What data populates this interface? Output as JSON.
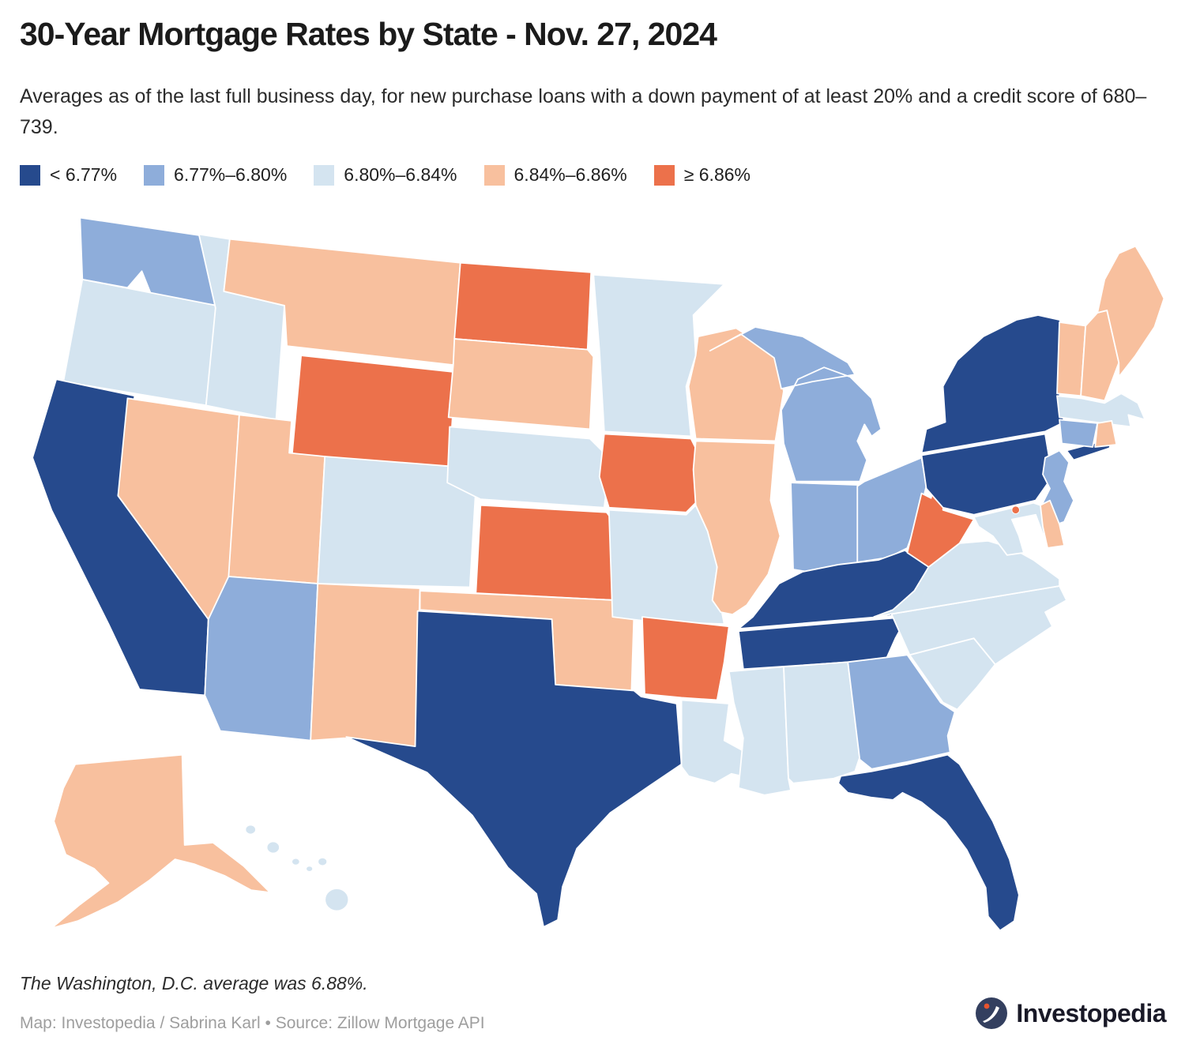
{
  "header": {
    "title": "30-Year Mortgage Rates by State - Nov. 27, 2024",
    "subtitle": "Averages as of the last full business day, for new purchase loans with a down payment of at least 20% and a credit score of 680–739."
  },
  "legend": {
    "items": [
      {
        "label": "< 6.77%",
        "color": "#264A8D"
      },
      {
        "label": "6.77%–6.80%",
        "color": "#8EADDA"
      },
      {
        "label": "6.80%–6.84%",
        "color": "#D4E4F0"
      },
      {
        "label": "6.84%–6.86%",
        "color": "#F8C09E"
      },
      {
        "label": "≥ 6.86%",
        "color": "#EC714B"
      }
    ]
  },
  "chart_data": {
    "type": "heatmap",
    "subtype": "us-state-choropleth",
    "title": "30-Year Mortgage Rates by State - Nov. 27, 2024",
    "legend_position": "top",
    "categories": [
      "< 6.77%",
      "6.77%–6.80%",
      "6.80%–6.84%",
      "6.84%–6.86%",
      "≥ 6.86%"
    ],
    "colors": [
      "#264A8D",
      "#8EADDA",
      "#D4E4F0",
      "#F8C09E",
      "#EC714B"
    ],
    "border_color": "#ffffff",
    "states": [
      {
        "abbr": "WA",
        "name": "Washington",
        "bucket": 1
      },
      {
        "abbr": "OR",
        "name": "Oregon",
        "bucket": 2
      },
      {
        "abbr": "CA",
        "name": "California",
        "bucket": 0
      },
      {
        "abbr": "NV",
        "name": "Nevada",
        "bucket": 3
      },
      {
        "abbr": "ID",
        "name": "Idaho",
        "bucket": 2
      },
      {
        "abbr": "MT",
        "name": "Montana",
        "bucket": 3
      },
      {
        "abbr": "WY",
        "name": "Wyoming",
        "bucket": 4
      },
      {
        "abbr": "UT",
        "name": "Utah",
        "bucket": 3
      },
      {
        "abbr": "CO",
        "name": "Colorado",
        "bucket": 2
      },
      {
        "abbr": "AZ",
        "name": "Arizona",
        "bucket": 1
      },
      {
        "abbr": "NM",
        "name": "New Mexico",
        "bucket": 3
      },
      {
        "abbr": "ND",
        "name": "North Dakota",
        "bucket": 4
      },
      {
        "abbr": "SD",
        "name": "South Dakota",
        "bucket": 3
      },
      {
        "abbr": "NE",
        "name": "Nebraska",
        "bucket": 2
      },
      {
        "abbr": "KS",
        "name": "Kansas",
        "bucket": 4
      },
      {
        "abbr": "OK",
        "name": "Oklahoma",
        "bucket": 3
      },
      {
        "abbr": "TX",
        "name": "Texas",
        "bucket": 0
      },
      {
        "abbr": "MN",
        "name": "Minnesota",
        "bucket": 2
      },
      {
        "abbr": "IA",
        "name": "Iowa",
        "bucket": 4
      },
      {
        "abbr": "MO",
        "name": "Missouri",
        "bucket": 2
      },
      {
        "abbr": "AR",
        "name": "Arkansas",
        "bucket": 4
      },
      {
        "abbr": "LA",
        "name": "Louisiana",
        "bucket": 2
      },
      {
        "abbr": "WI",
        "name": "Wisconsin",
        "bucket": 3
      },
      {
        "abbr": "IL",
        "name": "Illinois",
        "bucket": 3
      },
      {
        "abbr": "MI",
        "name": "Michigan",
        "bucket": 1
      },
      {
        "abbr": "IN",
        "name": "Indiana",
        "bucket": 1
      },
      {
        "abbr": "OH",
        "name": "Ohio",
        "bucket": 1
      },
      {
        "abbr": "KY",
        "name": "Kentucky",
        "bucket": 0
      },
      {
        "abbr": "TN",
        "name": "Tennessee",
        "bucket": 0
      },
      {
        "abbr": "MS",
        "name": "Mississippi",
        "bucket": 2
      },
      {
        "abbr": "AL",
        "name": "Alabama",
        "bucket": 2
      },
      {
        "abbr": "GA",
        "name": "Georgia",
        "bucket": 1
      },
      {
        "abbr": "FL",
        "name": "Florida",
        "bucket": 0
      },
      {
        "abbr": "SC",
        "name": "South Carolina",
        "bucket": 2
      },
      {
        "abbr": "NC",
        "name": "North Carolina",
        "bucket": 2
      },
      {
        "abbr": "VA",
        "name": "Virginia",
        "bucket": 2
      },
      {
        "abbr": "WV",
        "name": "West Virginia",
        "bucket": 4
      },
      {
        "abbr": "PA",
        "name": "Pennsylvania",
        "bucket": 0
      },
      {
        "abbr": "NY",
        "name": "New York",
        "bucket": 0
      },
      {
        "abbr": "NJ",
        "name": "New Jersey",
        "bucket": 1
      },
      {
        "abbr": "MD",
        "name": "Maryland",
        "bucket": 2
      },
      {
        "abbr": "DE",
        "name": "Delaware",
        "bucket": 3
      },
      {
        "abbr": "VT",
        "name": "Vermont",
        "bucket": 3
      },
      {
        "abbr": "NH",
        "name": "New Hampshire",
        "bucket": 3
      },
      {
        "abbr": "ME",
        "name": "Maine",
        "bucket": 3
      },
      {
        "abbr": "MA",
        "name": "Massachusetts",
        "bucket": 2
      },
      {
        "abbr": "CT",
        "name": "Connecticut",
        "bucket": 1
      },
      {
        "abbr": "RI",
        "name": "Rhode Island",
        "bucket": 3
      },
      {
        "abbr": "AK",
        "name": "Alaska",
        "bucket": 3
      },
      {
        "abbr": "HI",
        "name": "Hawaii",
        "bucket": 2
      },
      {
        "abbr": "DC",
        "name": "Washington, D.C.",
        "bucket": 4,
        "value": "6.88%"
      }
    ]
  },
  "footer": {
    "note": "The Washington, D.C. average was 6.88%.",
    "credit": "Map: Investopedia / Sabrina Karl • Source: Zillow Mortgage API",
    "logo_text": "Investopedia"
  }
}
